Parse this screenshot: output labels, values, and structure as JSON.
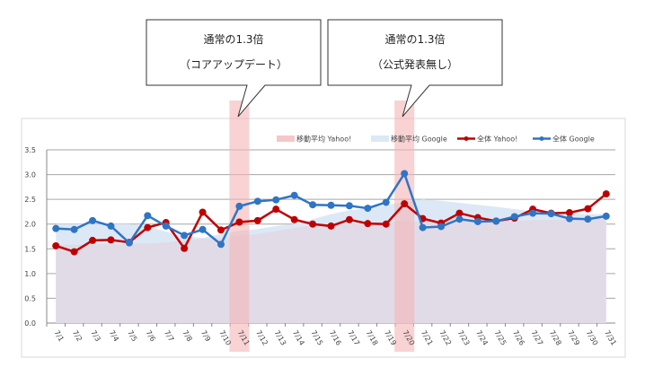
{
  "callouts": [
    {
      "line1": "通常の1.3倍",
      "line2": "（コアアップデート）",
      "date": "7/11"
    },
    {
      "line1": "通常の1.3倍",
      "line2": "（公式発表無し）",
      "date": "7/20"
    }
  ],
  "colors": {
    "yahoo": "#c00000",
    "google": "#2e75c6",
    "ma_yahoo": "#f4c7c9",
    "ma_google": "#dde8f6",
    "overlap": "#e1dbe8",
    "highlight": "#f5b4b6"
  },
  "chart_data": {
    "type": "line",
    "categories": [
      "7/1",
      "7/2",
      "7/3",
      "7/4",
      "7/5",
      "7/6",
      "7/7",
      "7/8",
      "7/9",
      "7/10",
      "7/11",
      "7/12",
      "7/13",
      "7/14",
      "7/15",
      "7/16",
      "7/17",
      "7/18",
      "7/19",
      "7/20",
      "7/21",
      "7/22",
      "7/23",
      "7/24",
      "7/25",
      "7/26",
      "7/27",
      "7/28",
      "7/29",
      "7/30",
      "7/31"
    ],
    "ylim": [
      0,
      3.5
    ],
    "yticks": [
      "0.0",
      "0.5",
      "1.0",
      "1.5",
      "2.0",
      "2.5",
      "3.0",
      "3.5"
    ],
    "grid": true,
    "legend": "top-right",
    "series": [
      {
        "name": "移動平均 Yahoo!",
        "kind": "area",
        "values": [
          1.58,
          1.58,
          1.59,
          1.6,
          1.6,
          1.61,
          1.63,
          1.67,
          1.7,
          1.72,
          1.76,
          1.8,
          1.86,
          1.92,
          1.98,
          2.0,
          2.02,
          2.03,
          2.04,
          2.06,
          2.05,
          2.05,
          2.05,
          2.06,
          2.06,
          2.07,
          2.08,
          2.08,
          2.09,
          2.1,
          2.12
        ]
      },
      {
        "name": "移動平均 Google",
        "kind": "area",
        "values": [
          2.0,
          2.0,
          2.0,
          2.0,
          2.0,
          1.95,
          1.85,
          1.75,
          1.72,
          1.8,
          1.86,
          1.9,
          1.96,
          2.0,
          2.1,
          2.2,
          2.28,
          2.32,
          2.38,
          2.45,
          2.5,
          2.47,
          2.43,
          2.39,
          2.35,
          2.3,
          2.26,
          2.24,
          2.22,
          2.2,
          2.2
        ]
      },
      {
        "name": "全体 Yahoo!",
        "kind": "line",
        "values": [
          1.56,
          1.44,
          1.67,
          1.68,
          1.63,
          1.93,
          2.03,
          1.51,
          2.24,
          1.88,
          2.04,
          2.07,
          2.3,
          2.09,
          2.0,
          1.96,
          2.09,
          2.01,
          2.0,
          2.41,
          2.11,
          2.02,
          2.22,
          2.13,
          2.06,
          2.12,
          2.3,
          2.22,
          2.23,
          2.31,
          2.61
        ]
      },
      {
        "name": "全体 Google",
        "kind": "line",
        "values": [
          1.91,
          1.89,
          2.07,
          1.96,
          1.62,
          2.17,
          1.96,
          1.77,
          1.89,
          1.59,
          2.36,
          2.46,
          2.49,
          2.58,
          2.39,
          2.38,
          2.37,
          2.32,
          2.44,
          3.02,
          1.93,
          1.95,
          2.1,
          2.05,
          2.06,
          2.15,
          2.22,
          2.21,
          2.11,
          2.1,
          2.16
        ]
      }
    ]
  }
}
